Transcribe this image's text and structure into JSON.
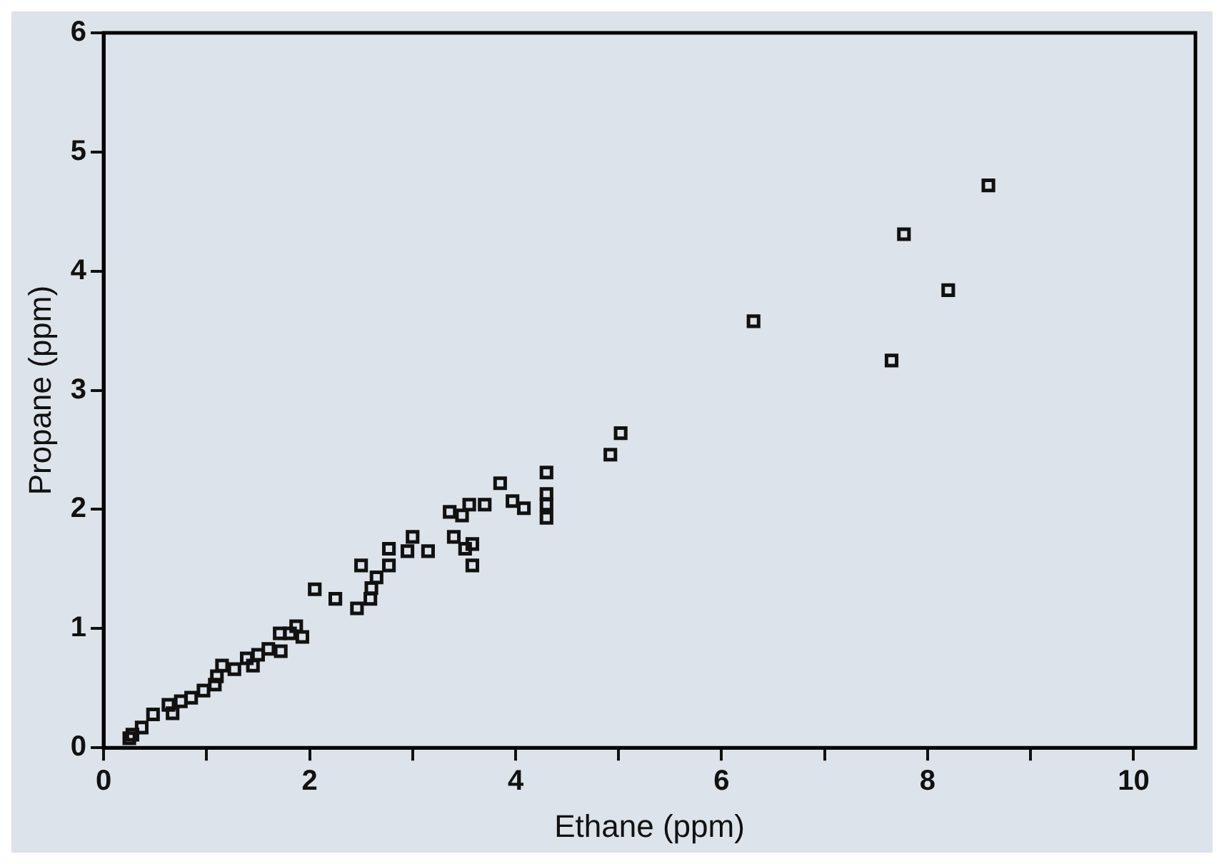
{
  "chart_data": {
    "type": "scatter",
    "xlabel": "Ethane (ppm)",
    "ylabel": "Propane (ppm)",
    "marker": "square",
    "grid": false,
    "legend": false,
    "xlim": [
      0,
      10.6
    ],
    "ylim": [
      0,
      6
    ],
    "xticks": [
      0,
      {
        "value": 1,
        "label": null
      },
      2,
      {
        "value": 3,
        "label": null
      },
      4,
      {
        "value": 5,
        "label": null
      },
      6,
      {
        "value": 7,
        "label": null
      },
      8,
      {
        "value": 9,
        "label": null
      },
      10
    ],
    "yticks": [
      0,
      1,
      2,
      3,
      4,
      5,
      6
    ],
    "series": [
      {
        "color": "#111111",
        "x": [
          0.25,
          0.28,
          0.37,
          0.48,
          0.67,
          0.63,
          0.75,
          0.85,
          0.97,
          1.08,
          1.1,
          1.15,
          1.27,
          1.45,
          1.39,
          1.5,
          1.6,
          1.72,
          1.71,
          1.81,
          1.87,
          1.93,
          2.05,
          2.25,
          2.59,
          2.46,
          2.5,
          2.6,
          2.65,
          2.77,
          2.77,
          2.95,
          3.0,
          3.15,
          3.36,
          3.48,
          3.4,
          3.51,
          3.58,
          3.58,
          3.55,
          3.7,
          3.85,
          3.97,
          4.08,
          4.3,
          4.3,
          4.3,
          4.3,
          4.92,
          5.02,
          6.31,
          7.65,
          7.77,
          8.2,
          8.59
        ],
        "values": [
          0.08,
          0.11,
          0.17,
          0.28,
          0.29,
          0.36,
          0.39,
          0.42,
          0.48,
          0.53,
          0.6,
          0.69,
          0.66,
          0.69,
          0.75,
          0.78,
          0.83,
          0.81,
          0.96,
          0.96,
          1.02,
          0.93,
          1.33,
          1.25,
          1.25,
          1.17,
          1.53,
          1.34,
          1.43,
          1.53,
          1.67,
          1.65,
          1.77,
          1.65,
          1.98,
          1.95,
          1.77,
          1.67,
          1.53,
          1.71,
          2.04,
          2.04,
          2.22,
          2.07,
          2.01,
          2.31,
          2.13,
          2.04,
          1.93,
          2.46,
          2.64,
          3.58,
          3.25,
          4.31,
          3.84,
          4.72
        ]
      }
    ]
  }
}
